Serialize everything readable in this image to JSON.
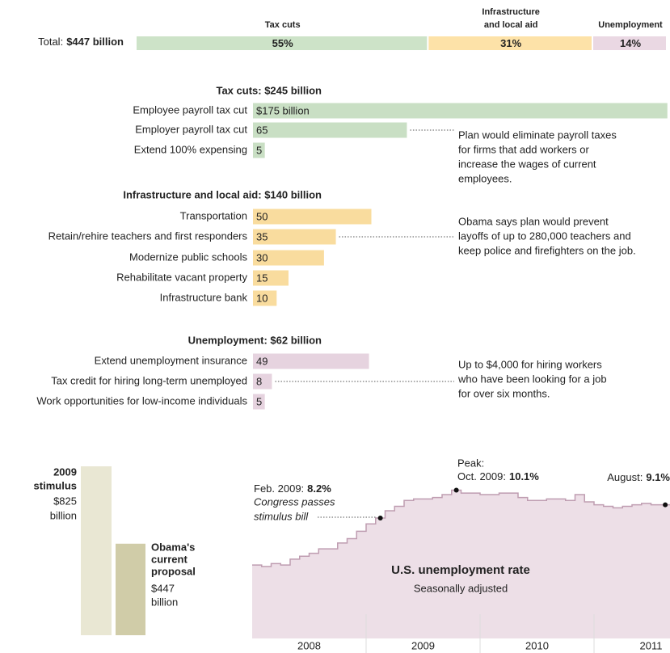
{
  "chart_data": [
    {
      "type": "total_bar",
      "label": "Total:",
      "total_label": "$447 billion",
      "categories": [
        "Tax cuts",
        [
          "Infrastructure",
          "and local aid"
        ],
        "Unemployment"
      ],
      "values": [
        55,
        31,
        14
      ],
      "value_labels": [
        "55%",
        "31%",
        "14%"
      ],
      "colors": [
        "#cde3c8",
        "#fde2a8",
        "#ead8e3"
      ]
    },
    {
      "type": "hbar_group",
      "title": "Tax cuts: $245 billion",
      "categories": [
        "Employee payroll tax cut",
        "Employer payroll tax cut",
        "Extend 100% expensing"
      ],
      "values": [
        175,
        65,
        5
      ],
      "value_labels": [
        "$175 billion",
        "65",
        "5"
      ],
      "color": "#c9dfc4",
      "note": [
        "Plan would eliminate payroll taxes",
        "for firms that add workers or",
        "increase the wages of current",
        "employees."
      ]
    },
    {
      "type": "hbar_group",
      "title": "Infrastructure and local aid: $140 billion",
      "categories": [
        "Transportation",
        "Retain/rehire teachers and first responders",
        "Modernize public schools",
        "Rehabilitate vacant property",
        "Infrastructure bank"
      ],
      "values": [
        50,
        35,
        30,
        15,
        10
      ],
      "color": "#f9dc9e",
      "note": [
        "Obama says plan would prevent",
        "layoffs of up to 280,000 teachers and",
        "keep police and firefighters on the job."
      ]
    },
    {
      "type": "hbar_group",
      "title": "Unemployment: $62 billion",
      "categories": [
        "Extend unemployment insurance",
        "Tax credit for hiring long-term unemployed",
        "Work opportunities for low-income individuals"
      ],
      "values": [
        49,
        8,
        5
      ],
      "color": "#e6d3df",
      "note": [
        "Up to $4,000 for hiring workers",
        "who have been looking for a job",
        "for over six months."
      ]
    },
    {
      "type": "column_compare",
      "categories": [
        [
          "2009",
          "stimulus"
        ],
        [
          "Obama's",
          "current",
          "proposal"
        ]
      ],
      "values": [
        825,
        447
      ],
      "value_labels": [
        [
          "$825",
          "billion"
        ],
        [
          "$447",
          "billion"
        ]
      ],
      "colors": [
        "#e9e7d3",
        "#d0cca8"
      ]
    },
    {
      "type": "step_line",
      "title": "U.S. unemployment rate",
      "subtitle": "Seasonally adjusted",
      "x": [
        "2008-01",
        "2008-02",
        "2008-03",
        "2008-04",
        "2008-05",
        "2008-06",
        "2008-07",
        "2008-08",
        "2008-09",
        "2008-10",
        "2008-11",
        "2008-12",
        "2009-01",
        "2009-02",
        "2009-03",
        "2009-04",
        "2009-05",
        "2009-06",
        "2009-07",
        "2009-08",
        "2009-09",
        "2009-10",
        "2009-11",
        "2009-12",
        "2010-01",
        "2010-02",
        "2010-03",
        "2010-04",
        "2010-05",
        "2010-06",
        "2010-07",
        "2010-08",
        "2010-09",
        "2010-10",
        "2010-11",
        "2010-12",
        "2011-01",
        "2011-02",
        "2011-03",
        "2011-04",
        "2011-05",
        "2011-06",
        "2011-07",
        "2011-08"
      ],
      "values": [
        5.0,
        4.9,
        5.1,
        5.0,
        5.4,
        5.6,
        5.8,
        6.1,
        6.1,
        6.5,
        6.8,
        7.3,
        7.8,
        8.2,
        8.7,
        9.0,
        9.4,
        9.5,
        9.5,
        9.6,
        9.8,
        10.1,
        9.9,
        9.9,
        9.8,
        9.8,
        9.9,
        9.9,
        9.6,
        9.4,
        9.4,
        9.5,
        9.5,
        9.4,
        9.8,
        9.3,
        9.1,
        9.0,
        8.9,
        9.0,
        9.1,
        9.2,
        9.1,
        9.1
      ],
      "ylim": [
        0,
        12
      ],
      "color": "#bf9db1",
      "fill": "#eddfe7",
      "year_labels": [
        "2008",
        "2009",
        "2010",
        "2011"
      ],
      "annotations": [
        {
          "x": "2009-02",
          "label": "Feb. 2009:",
          "value_label": "8.2%",
          "note": [
            "Congress passes",
            "stimulus bill"
          ]
        },
        {
          "x": "2009-10",
          "title": "Peak:",
          "label": "Oct. 2009:",
          "value_label": "10.1%"
        },
        {
          "x": "2011-08",
          "label": "August:",
          "value_label": "9.1%"
        }
      ]
    }
  ]
}
